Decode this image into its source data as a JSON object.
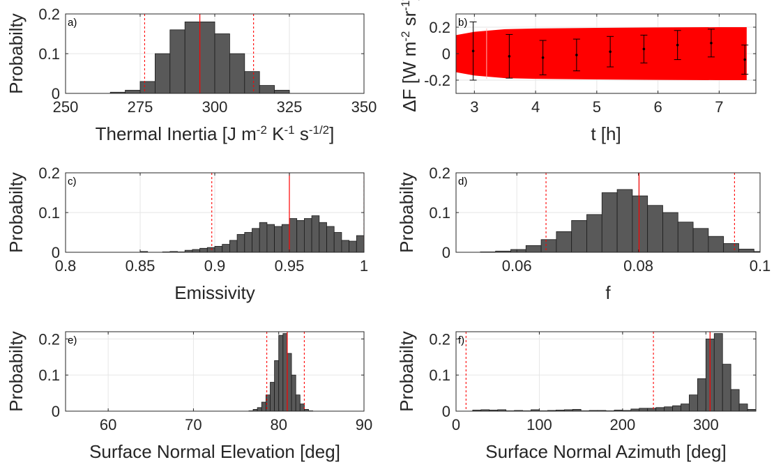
{
  "colors": {
    "bar_fill": "#595959",
    "bar_edge": "#1a1a1a",
    "marker_line": "#ff0000",
    "band_fill": "#ff0000",
    "errorbar": "#000000",
    "grid": "#e6e6e6"
  },
  "chart_data": [
    {
      "id": "a",
      "panel_label": "a)",
      "type": "bar",
      "xlabel": "Thermal Inertia [J m^-2 K^-1 s^-1/2]",
      "xlabel_parts": [
        "Thermal Inertia [J m",
        "-2",
        " K",
        "-1",
        " s",
        "-1/2",
        "]"
      ],
      "ylabel": "Probabilty",
      "xlim": [
        250,
        350
      ],
      "ylim": [
        0,
        0.2
      ],
      "xticks": [
        250,
        275,
        300,
        325,
        350
      ],
      "yticks": [
        0,
        0.1,
        0.2
      ],
      "ytick_labels": [
        "0",
        "0.1",
        "0.2"
      ],
      "grid": true,
      "bin_edges": [
        265,
        270,
        275,
        280,
        285,
        290,
        295,
        300,
        305,
        310,
        315,
        320,
        325
      ],
      "values": [
        0.003,
        0.008,
        0.03,
        0.1,
        0.16,
        0.18,
        0.18,
        0.15,
        0.1,
        0.055,
        0.02,
        0.008
      ],
      "best_fit": 295,
      "bounds": [
        276.5,
        313
      ]
    },
    {
      "id": "b",
      "panel_label": "b)",
      "type": "line",
      "xlabel": "t [h]",
      "ylabel": "ΔF [W m^-2 sr^-1]",
      "ylabel_parts": [
        "ΔF [W m",
        "-2",
        " sr",
        "-1",
        "]"
      ],
      "xlim": [
        2.7,
        7.6
      ],
      "ylim": [
        -0.3,
        0.3
      ],
      "xticks": [
        3,
        4,
        5,
        6,
        7
      ],
      "yticks": [
        -0.2,
        0,
        0.2
      ],
      "ytick_labels": [
        "-0.2",
        "0",
        "0.2"
      ],
      "grid": true,
      "band_x": [
        2.7,
        3.0,
        3.5,
        4.0,
        5.0,
        6.0,
        7.0,
        7.45
      ],
      "band_upper": [
        0.14,
        0.165,
        0.185,
        0.19,
        0.195,
        0.198,
        0.2,
        0.2
      ],
      "band_lower": [
        -0.14,
        -0.165,
        -0.185,
        -0.19,
        -0.195,
        -0.198,
        -0.2,
        -0.2
      ],
      "x": [
        2.98,
        3.57,
        4.12,
        4.67,
        5.22,
        5.77,
        6.32,
        6.87,
        7.42
      ],
      "y": [
        0.02,
        -0.02,
        -0.03,
        -0.01,
        0.015,
        0.035,
        0.065,
        0.08,
        -0.045
      ],
      "err": [
        0.22,
        0.165,
        0.13,
        0.12,
        0.115,
        0.105,
        0.11,
        0.105,
        0.11
      ]
    },
    {
      "id": "c",
      "panel_label": "c)",
      "type": "bar",
      "xlabel": "Emissivity",
      "ylabel": "Probabilty",
      "xlim": [
        0.8,
        1.0
      ],
      "ylim": [
        0,
        0.2
      ],
      "xticks": [
        0.8,
        0.85,
        0.9,
        0.95,
        1.0
      ],
      "xtick_labels": [
        "0.8",
        "0.85",
        "0.9",
        "0.95",
        "1"
      ],
      "yticks": [
        0,
        0.1,
        0.2
      ],
      "ytick_labels": [
        "0",
        "0.1",
        "0.2"
      ],
      "grid": true,
      "bin_edges": [
        0.8,
        0.805,
        0.81,
        0.815,
        0.82,
        0.825,
        0.83,
        0.835,
        0.84,
        0.845,
        0.85,
        0.855,
        0.86,
        0.865,
        0.87,
        0.875,
        0.88,
        0.885,
        0.89,
        0.895,
        0.9,
        0.905,
        0.91,
        0.915,
        0.92,
        0.925,
        0.93,
        0.935,
        0.94,
        0.945,
        0.95,
        0.955,
        0.96,
        0.965,
        0.97,
        0.975,
        0.98,
        0.985,
        0.99,
        0.995,
        1.0
      ],
      "values": [
        0,
        0,
        0,
        0,
        0,
        0,
        0,
        0,
        0,
        0,
        0.002,
        0,
        0,
        0.001,
        0.002,
        0.001,
        0.005,
        0.007,
        0.01,
        0.012,
        0.015,
        0.02,
        0.03,
        0.045,
        0.05,
        0.06,
        0.075,
        0.07,
        0.065,
        0.07,
        0.085,
        0.08,
        0.085,
        0.092,
        0.075,
        0.065,
        0.05,
        0.03,
        0.028,
        0.042
      ],
      "best_fit": 0.95,
      "bounds": [
        0.898,
        1.0
      ]
    },
    {
      "id": "d",
      "panel_label": "d)",
      "type": "bar",
      "xlabel": "f",
      "ylabel": "Probabilty",
      "xlim": [
        0.05,
        0.1
      ],
      "ylim": [
        0,
        0.2
      ],
      "xticks": [
        0.06,
        0.08,
        0.1
      ],
      "xtick_labels": [
        "0.06",
        "0.08",
        "0.1"
      ],
      "yticks": [
        0,
        0.1,
        0.2
      ],
      "ytick_labels": [
        "0",
        "0.1",
        "0.2"
      ],
      "grid": true,
      "bin_edges": [
        0.054,
        0.0565,
        0.059,
        0.0615,
        0.064,
        0.0665,
        0.069,
        0.0715,
        0.074,
        0.0765,
        0.079,
        0.0815,
        0.084,
        0.0865,
        0.089,
        0.0915,
        0.094,
        0.0965,
        0.099,
        0.1015
      ],
      "values": [
        0.001,
        0.003,
        0.007,
        0.017,
        0.032,
        0.052,
        0.08,
        0.095,
        0.15,
        0.158,
        0.142,
        0.118,
        0.1,
        0.076,
        0.06,
        0.04,
        0.022,
        0.008,
        0.002
      ],
      "best_fit": 0.0801,
      "bounds": [
        0.0648,
        0.0958
      ]
    },
    {
      "id": "e",
      "panel_label": "e)",
      "type": "bar",
      "xlabel": "Surface Normal Elevation [deg]",
      "ylabel": "Probabilty",
      "xlim": [
        55,
        90
      ],
      "ylim": [
        0,
        0.22
      ],
      "xticks": [
        60,
        70,
        80,
        90
      ],
      "yticks": [
        0,
        0.1,
        0.2
      ],
      "ytick_labels": [
        "0",
        "0.1",
        "0.2"
      ],
      "grid": true,
      "bin_edges": [
        76.5,
        77,
        77.5,
        78,
        78.5,
        79,
        79.5,
        80,
        80.5,
        81,
        81.5,
        82,
        82.5,
        83,
        83.5,
        84
      ],
      "values": [
        0.001,
        0.005,
        0.01,
        0.025,
        0.045,
        0.08,
        0.14,
        0.21,
        0.215,
        0.16,
        0.1,
        0.045,
        0.02,
        0.005,
        0.001
      ],
      "best_fit": 81.0,
      "bounds": [
        78.6,
        83.0
      ]
    },
    {
      "id": "f",
      "panel_label": "f)",
      "type": "bar",
      "xlabel": "Surface Normal Azimuth [deg]",
      "ylabel": "Probabilty",
      "xlim": [
        0,
        360
      ],
      "ylim": [
        0,
        0.22
      ],
      "xticks": [
        0,
        100,
        200,
        300
      ],
      "yticks": [
        0,
        0.1,
        0.2
      ],
      "ytick_labels": [
        "0",
        "0.1",
        "0.2"
      ],
      "grid": true,
      "bin_edges": [
        20,
        30,
        40,
        50,
        60,
        70,
        80,
        90,
        100,
        110,
        120,
        130,
        140,
        150,
        160,
        170,
        180,
        190,
        200,
        210,
        220,
        230,
        240,
        250,
        260,
        270,
        280,
        290,
        300,
        310,
        320,
        330,
        340,
        350,
        360
      ],
      "values": [
        0.003,
        0.004,
        0.003,
        0.004,
        0.001,
        0.002,
        0.001,
        0.004,
        0.001,
        0.002,
        0.003,
        0.004,
        0.005,
        0.001,
        0.002,
        0.002,
        0.001,
        0.003,
        0.002,
        0.006,
        0.008,
        0.008,
        0.01,
        0.012,
        0.015,
        0.02,
        0.045,
        0.09,
        0.2,
        0.215,
        0.13,
        0.06,
        0.02,
        0.005
      ],
      "best_fit": 305,
      "bounds": [
        12,
        237
      ]
    }
  ]
}
